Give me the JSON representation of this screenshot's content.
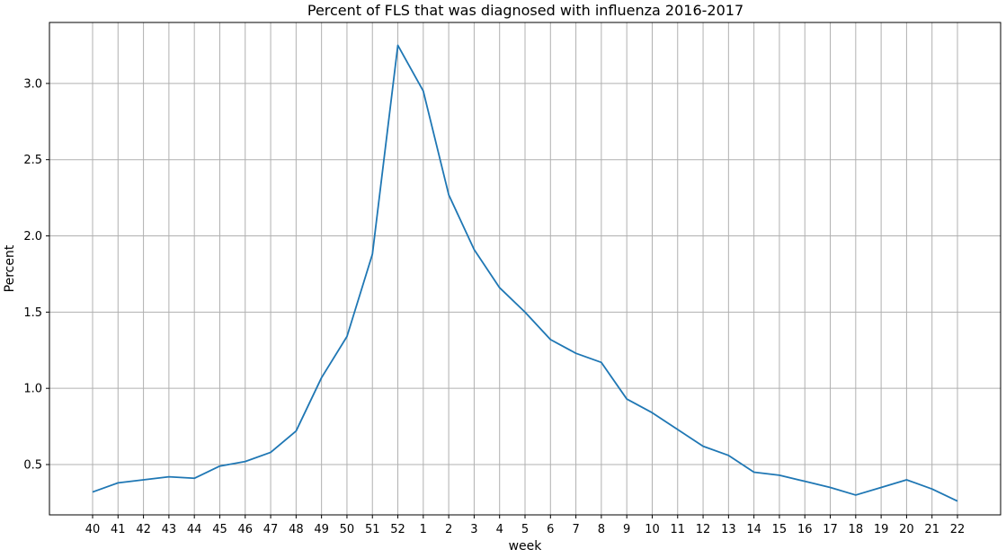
{
  "chart_data": {
    "type": "line",
    "title": "Percent of FLS that was diagnosed with influenza 2016-2017",
    "xlabel": "week",
    "ylabel": "Percent",
    "categories": [
      "40",
      "41",
      "42",
      "43",
      "44",
      "45",
      "46",
      "47",
      "48",
      "49",
      "50",
      "51",
      "52",
      "1",
      "2",
      "3",
      "4",
      "5",
      "6",
      "7",
      "8",
      "9",
      "10",
      "11",
      "12",
      "13",
      "14",
      "15",
      "16",
      "17",
      "18",
      "19",
      "20",
      "21",
      "22"
    ],
    "series": [
      {
        "values": [
          0.32,
          0.38,
          0.4,
          0.42,
          0.41,
          0.49,
          0.52,
          0.58,
          0.72,
          1.07,
          1.34,
          1.88,
          3.25,
          2.95,
          2.27,
          1.91,
          1.66,
          1.5,
          1.32,
          1.23,
          1.17,
          0.93,
          0.84,
          0.73,
          0.62,
          0.56,
          0.45,
          0.43,
          0.39,
          0.35,
          0.3,
          0.35,
          0.4,
          0.34,
          0.26
        ],
        "color": "#1f77b4"
      }
    ],
    "yticks": [
      0.5,
      1.0,
      1.5,
      2.0,
      2.5,
      3.0
    ],
    "ylim": [
      0.17,
      3.4
    ],
    "grid": true,
    "legend": "none"
  }
}
